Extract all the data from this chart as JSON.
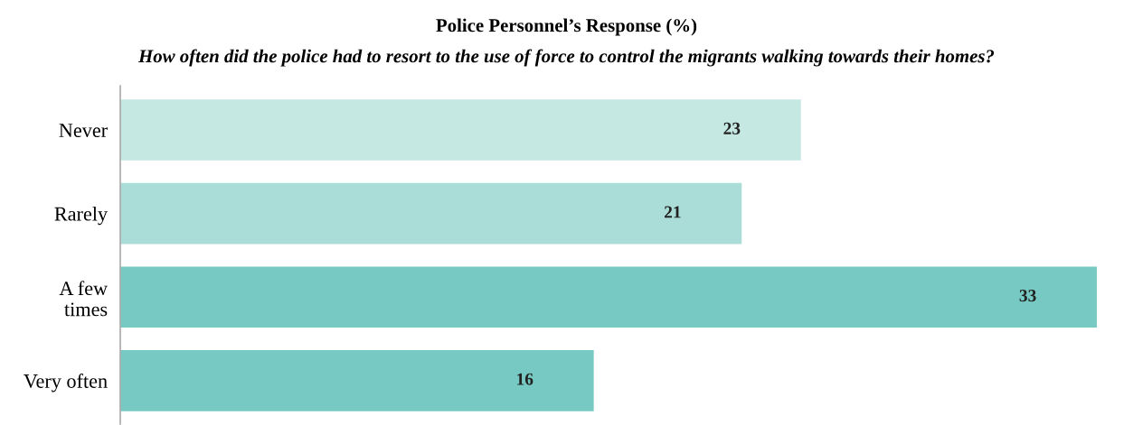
{
  "chart_data": {
    "type": "bar",
    "orientation": "horizontal",
    "title": "Police Personnel’s Response (%)",
    "subtitle": "How often did the police had to resort to the use of force to control the migrants walking towards their homes?",
    "categories": [
      "Never",
      "Rarely",
      "A few\ntimes",
      "Very often"
    ],
    "values": [
      23,
      21,
      33,
      16
    ],
    "colors": [
      "#c5e8e2",
      "#aaddd7",
      "#76cac3",
      "#76cac3"
    ],
    "data_labels": true,
    "grid": false,
    "legend": false
  }
}
